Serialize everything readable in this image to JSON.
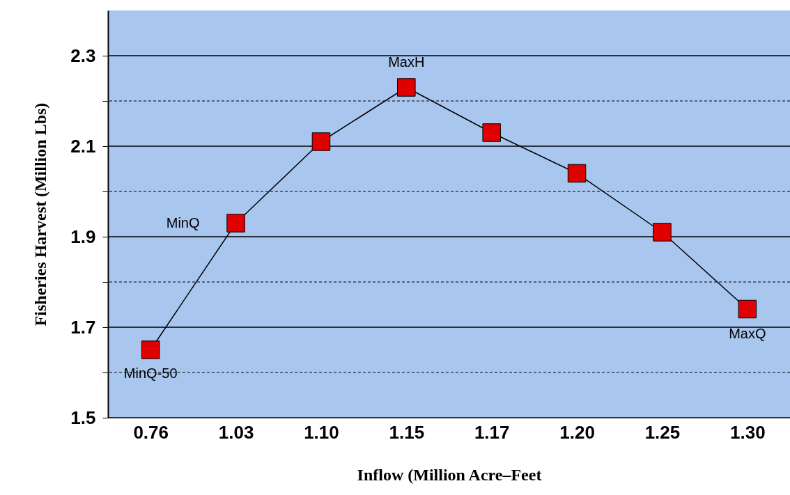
{
  "chart_data": {
    "type": "line",
    "xlabel": "Inflow (Million Acre–Feet",
    "ylabel": "Fisheries Harvest (Million Lbs)",
    "categories": [
      "0.76",
      "1.03",
      "1.10",
      "1.15",
      "1.17",
      "1.20",
      "1.25",
      "1.30"
    ],
    "series": [
      {
        "color": "#e00000",
        "values": [
          1.65,
          1.93,
          2.11,
          2.23,
          2.13,
          2.04,
          1.91,
          1.74
        ]
      }
    ],
    "marker": "square",
    "ylim": [
      1.5,
      2.4
    ],
    "yticks": [
      1.5,
      {
        "value": 1.6,
        "label": null
      },
      1.7,
      {
        "value": 1.8,
        "label": null
      },
      1.9,
      {
        "value": 2.0,
        "label": null
      },
      2.1,
      {
        "value": 2.2,
        "label": null
      },
      2.3
    ],
    "grid": "y",
    "annotations": [
      {
        "text": "MinQ-50",
        "x": "0.76",
        "y": 1.65
      },
      {
        "text": "MinQ",
        "x": "1.03",
        "y": 1.93
      },
      {
        "text": "MaxH",
        "x": "1.15",
        "y": 2.23
      },
      {
        "text": "MaxQ",
        "x": "1.30",
        "y": 1.74
      }
    ]
  }
}
